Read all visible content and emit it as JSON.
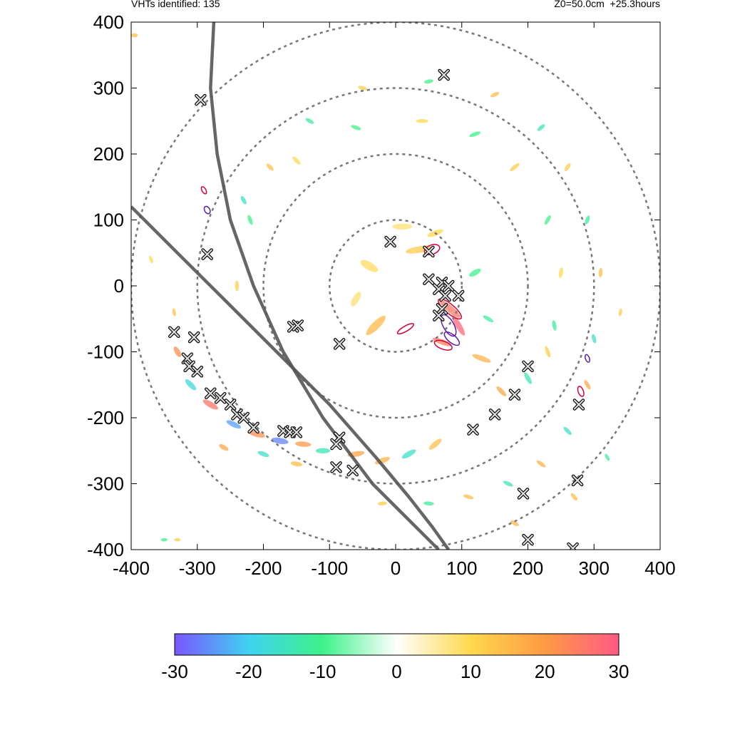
{
  "header": {
    "left_text": "VHTs identified: 135",
    "right_text": "Z0=50.0cm  +25.3hours"
  },
  "chart_data": {
    "type": "scatter",
    "xlim": [
      -400,
      400
    ],
    "ylim": [
      -400,
      400
    ],
    "x_ticks": [
      "-400",
      "-300",
      "-200",
      "-100",
      "0",
      "100",
      "200",
      "300",
      "400"
    ],
    "y_ticks": [
      "400",
      "300",
      "200",
      "100",
      "0",
      "-100",
      "-200",
      "-300",
      "-400"
    ],
    "x_tick_values": [
      -400,
      -300,
      -200,
      -100,
      0,
      100,
      200,
      300,
      400
    ],
    "y_tick_values": [
      400,
      300,
      200,
      100,
      0,
      -100,
      -200,
      -300,
      -400
    ],
    "range_rings": [
      100,
      200,
      300,
      400
    ],
    "grid": false,
    "colorbar": {
      "range": [
        -30,
        30
      ],
      "ticks": [
        "-30",
        "-20",
        "-10",
        "0",
        "10",
        "20",
        "30"
      ],
      "tick_values": [
        -30,
        -20,
        -10,
        0,
        10,
        20,
        30
      ],
      "colors": [
        "#7a55ff",
        "#3fd2f2",
        "#3ef28a",
        "#ffffff",
        "#ffd84e",
        "#ff9a44",
        "#ff5a86"
      ]
    },
    "tracks": [
      [
        [
          -275,
          400
        ],
        [
          -280,
          300
        ],
        [
          -270,
          200
        ],
        [
          -250,
          100
        ],
        [
          -215,
          0
        ],
        [
          -170,
          -100
        ],
        [
          -110,
          -200
        ],
        [
          -35,
          -300
        ],
        [
          65,
          -400
        ]
      ],
      [
        [
          -400,
          120
        ],
        [
          -330,
          50
        ],
        [
          -260,
          -20
        ],
        [
          -180,
          -100
        ],
        [
          -100,
          -180
        ],
        [
          -30,
          -260
        ],
        [
          20,
          -320
        ],
        [
          55,
          -365
        ],
        [
          80,
          -400
        ]
      ]
    ],
    "vht_markers": [
      [
        -8,
        67
      ],
      [
        50,
        52
      ],
      [
        50,
        10
      ],
      [
        70,
        5
      ],
      [
        80,
        0
      ],
      [
        65,
        -5
      ],
      [
        75,
        -15
      ],
      [
        95,
        -15
      ],
      [
        70,
        -35
      ],
      [
        65,
        -45
      ],
      [
        -335,
        -70
      ],
      [
        -305,
        -78
      ],
      [
        -315,
        -110
      ],
      [
        -312,
        -122
      ],
      [
        -300,
        -130
      ],
      [
        -280,
        -163
      ],
      [
        -265,
        -170
      ],
      [
        -250,
        -180
      ],
      [
        -240,
        -195
      ],
      [
        -230,
        -200
      ],
      [
        -215,
        -215
      ],
      [
        -170,
        -220
      ],
      [
        -160,
        -222
      ],
      [
        -150,
        -222
      ],
      [
        -85,
        -230
      ],
      [
        -90,
        -240
      ],
      [
        -90,
        -275
      ],
      [
        -65,
        -280
      ],
      [
        -155,
        -62
      ],
      [
        -148,
        -60
      ],
      [
        -85,
        -88
      ],
      [
        -295,
        282
      ],
      [
        -285,
        48
      ],
      [
        73,
        320
      ],
      [
        200,
        -122
      ],
      [
        180,
        -165
      ],
      [
        150,
        -195
      ],
      [
        117,
        -218
      ],
      [
        277,
        -180
      ],
      [
        275,
        -295
      ],
      [
        193,
        -315
      ],
      [
        200,
        -385
      ],
      [
        268,
        -398
      ]
    ],
    "vorticity_features": [
      {
        "x": 82,
        "y": -35,
        "v": 25,
        "w": 40,
        "h": 10,
        "r": -40
      },
      {
        "x": 95,
        "y": -60,
        "v": 28,
        "w": 35,
        "h": 9,
        "r": -60
      },
      {
        "x": 70,
        "y": -85,
        "v": 24,
        "w": 30,
        "h": 8,
        "r": -20
      },
      {
        "x": -30,
        "y": -60,
        "v": 15,
        "w": 40,
        "h": 12,
        "r": 45
      },
      {
        "x": 35,
        "y": 55,
        "v": 12,
        "w": 40,
        "h": 10,
        "r": 10
      },
      {
        "x": -40,
        "y": 30,
        "v": 9,
        "w": 30,
        "h": 12,
        "r": -30
      },
      {
        "x": 10,
        "y": 90,
        "v": 8,
        "w": 30,
        "h": 9,
        "r": 0
      },
      {
        "x": 60,
        "y": 80,
        "v": 10,
        "w": 25,
        "h": 8,
        "r": 20
      },
      {
        "x": -60,
        "y": -20,
        "v": 8,
        "w": 25,
        "h": 10,
        "r": 60
      },
      {
        "x": 120,
        "y": 20,
        "v": -10,
        "w": 20,
        "h": 8,
        "r": 30
      },
      {
        "x": 140,
        "y": -50,
        "v": -12,
        "w": 18,
        "h": 6,
        "r": -30
      },
      {
        "x": 130,
        "y": -110,
        "v": 16,
        "w": 30,
        "h": 8,
        "r": -20
      },
      {
        "x": -330,
        "y": -100,
        "v": 22,
        "w": 18,
        "h": 8,
        "r": -60
      },
      {
        "x": -310,
        "y": -150,
        "v": -18,
        "w": 22,
        "h": 8,
        "r": -45
      },
      {
        "x": -280,
        "y": -180,
        "v": 26,
        "w": 26,
        "h": 9,
        "r": -30
      },
      {
        "x": -245,
        "y": -210,
        "v": -24,
        "w": 24,
        "h": 8,
        "r": -25
      },
      {
        "x": -210,
        "y": -225,
        "v": 22,
        "w": 26,
        "h": 8,
        "r": -15
      },
      {
        "x": -175,
        "y": -235,
        "v": -26,
        "w": 26,
        "h": 9,
        "r": -10
      },
      {
        "x": -140,
        "y": -240,
        "v": 20,
        "w": 24,
        "h": 8,
        "r": -5
      },
      {
        "x": -110,
        "y": -250,
        "v": -14,
        "w": 22,
        "h": 8,
        "r": 0
      },
      {
        "x": -60,
        "y": -255,
        "v": 18,
        "w": 26,
        "h": 8,
        "r": 10
      },
      {
        "x": -20,
        "y": -265,
        "v": 16,
        "w": 24,
        "h": 8,
        "r": 20
      },
      {
        "x": 20,
        "y": -255,
        "v": -16,
        "w": 24,
        "h": 8,
        "r": 30
      },
      {
        "x": 60,
        "y": -240,
        "v": 14,
        "w": 24,
        "h": 8,
        "r": 40
      },
      {
        "x": -260,
        "y": -245,
        "v": 18,
        "w": 16,
        "h": 7,
        "r": -30
      },
      {
        "x": -200,
        "y": -255,
        "v": -16,
        "w": 18,
        "h": 7,
        "r": -20
      },
      {
        "x": -150,
        "y": -270,
        "v": 14,
        "w": 18,
        "h": 7,
        "r": -10
      },
      {
        "x": 160,
        "y": -160,
        "v": 18,
        "w": 20,
        "h": 7,
        "r": -45
      },
      {
        "x": 200,
        "y": -140,
        "v": -14,
        "w": 20,
        "h": 7,
        "r": -60
      },
      {
        "x": 230,
        "y": -100,
        "v": 12,
        "w": 18,
        "h": 6,
        "r": -70
      },
      {
        "x": 240,
        "y": -60,
        "v": -12,
        "w": 16,
        "h": 6,
        "r": -80
      },
      {
        "x": 250,
        "y": 20,
        "v": 10,
        "w": 16,
        "h": 6,
        "r": 80
      },
      {
        "x": 230,
        "y": 100,
        "v": -10,
        "w": 16,
        "h": 6,
        "r": 60
      },
      {
        "x": 180,
        "y": 180,
        "v": 12,
        "w": 18,
        "h": 6,
        "r": 40
      },
      {
        "x": 120,
        "y": 230,
        "v": -10,
        "w": 18,
        "h": 6,
        "r": 20
      },
      {
        "x": 40,
        "y": 250,
        "v": 10,
        "w": 18,
        "h": 6,
        "r": 0
      },
      {
        "x": -60,
        "y": 240,
        "v": -10,
        "w": 16,
        "h": 6,
        "r": -20
      },
      {
        "x": -150,
        "y": 190,
        "v": 10,
        "w": 16,
        "h": 6,
        "r": -45
      },
      {
        "x": -220,
        "y": 100,
        "v": -10,
        "w": 16,
        "h": 6,
        "r": -70
      },
      {
        "x": -240,
        "y": 0,
        "v": 12,
        "w": 16,
        "h": 6,
        "r": 90
      },
      {
        "x": -230,
        "y": 130,
        "v": -16,
        "w": 14,
        "h": 6,
        "r": -60
      },
      {
        "x": -190,
        "y": 180,
        "v": 14,
        "w": 14,
        "h": 6,
        "r": -45
      },
      {
        "x": -130,
        "y": 250,
        "v": -12,
        "w": 14,
        "h": 6,
        "r": -30
      },
      {
        "x": -50,
        "y": 300,
        "v": 12,
        "w": 14,
        "h": 6,
        "r": -15
      },
      {
        "x": 50,
        "y": 310,
        "v": -10,
        "w": 14,
        "h": 6,
        "r": 10
      },
      {
        "x": 150,
        "y": 290,
        "v": 14,
        "w": 14,
        "h": 6,
        "r": 25
      },
      {
        "x": 220,
        "y": 240,
        "v": -14,
        "w": 14,
        "h": 6,
        "r": 40
      },
      {
        "x": 260,
        "y": 180,
        "v": 12,
        "w": 14,
        "h": 6,
        "r": 55
      },
      {
        "x": 290,
        "y": 100,
        "v": -12,
        "w": 14,
        "h": 6,
        "r": 70
      },
      {
        "x": 310,
        "y": 20,
        "v": 14,
        "w": 14,
        "h": 6,
        "r": 85
      },
      {
        "x": 300,
        "y": -80,
        "v": -16,
        "w": 14,
        "h": 6,
        "r": -75
      },
      {
        "x": 290,
        "y": -150,
        "v": 18,
        "w": 16,
        "h": 6,
        "r": -60
      },
      {
        "x": 260,
        "y": -220,
        "v": -16,
        "w": 16,
        "h": 6,
        "r": -45
      },
      {
        "x": 220,
        "y": -270,
        "v": 16,
        "w": 16,
        "h": 6,
        "r": -35
      },
      {
        "x": 170,
        "y": -300,
        "v": -14,
        "w": 16,
        "h": 6,
        "r": -25
      },
      {
        "x": 110,
        "y": -320,
        "v": 14,
        "w": 16,
        "h": 6,
        "r": -15
      },
      {
        "x": 50,
        "y": -330,
        "v": -12,
        "w": 16,
        "h": 6,
        "r": -5
      },
      {
        "x": -20,
        "y": -330,
        "v": 12,
        "w": 14,
        "h": 6,
        "r": 5
      },
      {
        "x": 180,
        "y": -360,
        "v": 16,
        "w": 14,
        "h": 6,
        "r": -30
      },
      {
        "x": 270,
        "y": -320,
        "v": 14,
        "w": 14,
        "h": 6,
        "r": -50
      },
      {
        "x": 320,
        "y": -260,
        "v": -12,
        "w": 12,
        "h": 5,
        "r": -60
      },
      {
        "x": 340,
        "y": -40,
        "v": 12,
        "w": 12,
        "h": 5,
        "r": 80
      },
      {
        "x": -335,
        "y": -40,
        "v": 14,
        "w": 12,
        "h": 5,
        "r": -80
      },
      {
        "x": -370,
        "y": 40,
        "v": 10,
        "w": 12,
        "h": 5,
        "r": -70
      },
      {
        "x": -395,
        "y": 380,
        "v": 14,
        "w": 10,
        "h": 6,
        "r": 0
      },
      {
        "x": -350,
        "y": -385,
        "v": -10,
        "w": 10,
        "h": 5,
        "r": 0
      },
      {
        "x": -330,
        "y": -385,
        "v": 12,
        "w": 10,
        "h": 5,
        "r": 0
      }
    ],
    "contours": [
      {
        "x": 55,
        "y": 55,
        "rx": 12,
        "ry": 7,
        "r": 20,
        "c": "#d8003a"
      },
      {
        "x": 80,
        "y": -60,
        "rx": 18,
        "ry": 8,
        "r": -60,
        "c": "#5b1fa8"
      },
      {
        "x": 82,
        "y": -35,
        "rx": 22,
        "ry": 7,
        "r": -40,
        "c": "#d8003a"
      },
      {
        "x": 72,
        "y": -90,
        "rx": 14,
        "ry": 6,
        "r": -20,
        "c": "#d8003a"
      },
      {
        "x": 85,
        "y": -80,
        "rx": 14,
        "ry": 6,
        "r": -40,
        "c": "#5b1fa8"
      },
      {
        "x": 15,
        "y": -65,
        "rx": 14,
        "ry": 4,
        "r": 30,
        "c": "#d8003a"
      },
      {
        "x": 280,
        "y": -160,
        "rx": 8,
        "ry": 4,
        "r": -70,
        "c": "#d8003a"
      },
      {
        "x": 290,
        "y": -110,
        "rx": 6,
        "ry": 3,
        "r": -70,
        "c": "#5b1fa8"
      },
      {
        "x": -285,
        "y": 115,
        "rx": 6,
        "ry": 4,
        "r": -60,
        "c": "#5b1fa8"
      },
      {
        "x": -290,
        "y": 145,
        "rx": 6,
        "ry": 3,
        "r": -60,
        "c": "#d8003a"
      }
    ]
  }
}
